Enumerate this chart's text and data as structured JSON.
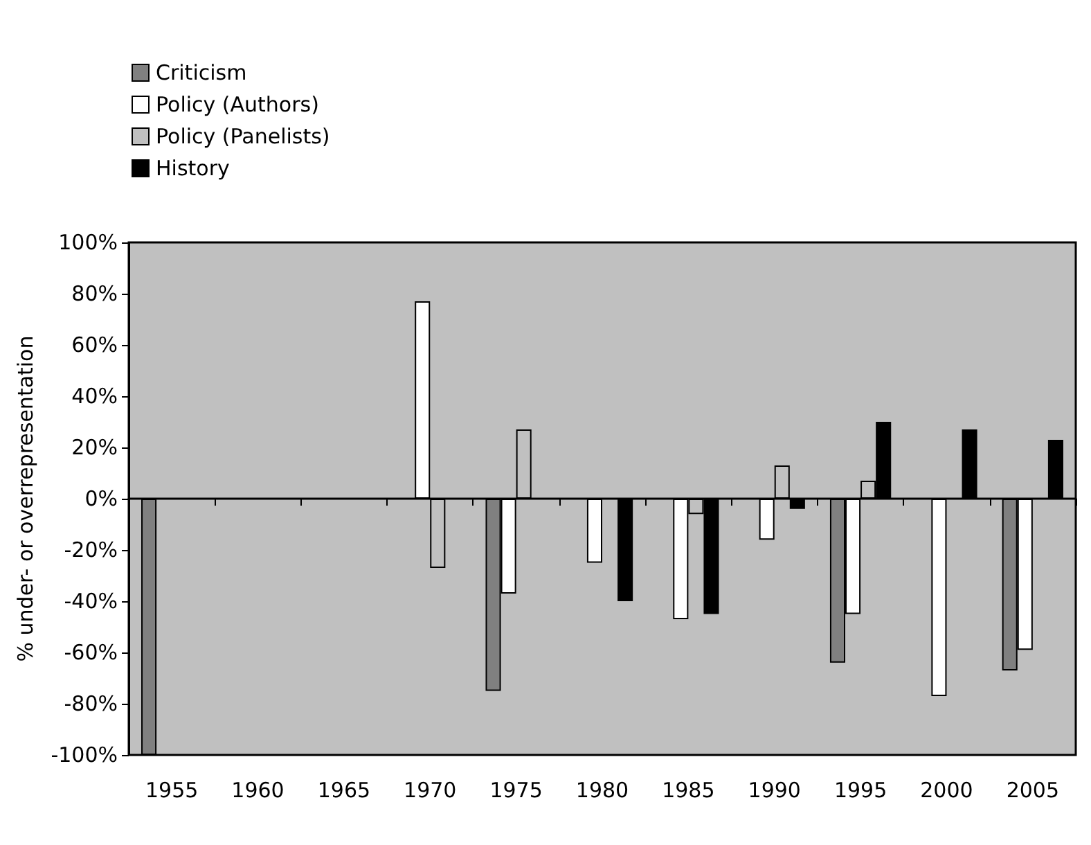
{
  "chart_data": {
    "type": "bar",
    "ylabel": "% under- or overrepresentation",
    "categories": [
      "1955",
      "1960",
      "1965",
      "1970",
      "1975",
      "1980",
      "1985",
      "1990",
      "1995",
      "2000",
      "2005"
    ],
    "series": [
      {
        "name": "Criticism",
        "color": "#808080",
        "values": [
          -100,
          null,
          null,
          null,
          -75,
          null,
          null,
          null,
          -64,
          null,
          -67
        ]
      },
      {
        "name": "Policy (Authors)",
        "color": "#ffffff",
        "values": [
          null,
          null,
          null,
          77,
          -37,
          -25,
          -47,
          -16,
          -45,
          -77,
          -59
        ]
      },
      {
        "name": "Policy (Panelists)",
        "color": "#c0c0c0",
        "values": [
          null,
          null,
          null,
          -27,
          27,
          null,
          -6,
          13,
          7,
          null,
          null
        ]
      },
      {
        "name": "History",
        "color": "#000000",
        "values": [
          null,
          null,
          null,
          null,
          null,
          -40,
          -45,
          -4,
          30,
          27,
          23
        ]
      }
    ],
    "ylim": [
      -100,
      100
    ],
    "yticks": [
      {
        "value": -100,
        "label": "-100%"
      },
      {
        "value": -80,
        "label": "-80%"
      },
      {
        "value": -60,
        "label": "-60%"
      },
      {
        "value": -40,
        "label": "-40%"
      },
      {
        "value": -20,
        "label": "-20%"
      },
      {
        "value": 0,
        "label": "0%"
      },
      {
        "value": 20,
        "label": "20%"
      },
      {
        "value": 40,
        "label": "40%"
      },
      {
        "value": 60,
        "label": "60%"
      },
      {
        "value": 80,
        "label": "80%"
      },
      {
        "value": 100,
        "label": "100%"
      }
    ],
    "legend": "top left"
  }
}
